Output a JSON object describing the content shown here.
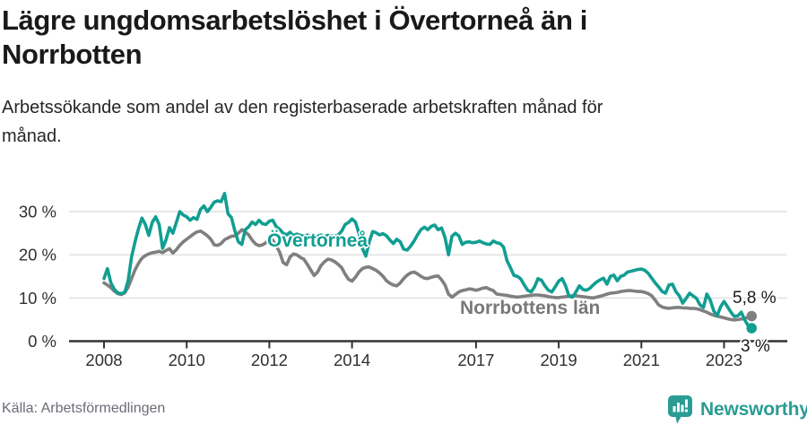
{
  "header": {
    "title_lines": [
      "Lägre ungdomsarbetslöshet i Övertorneå än i",
      "Norrbotten"
    ],
    "subtitle_lines": [
      "Arbetssökande som andel av den registerbaserade arbetskraften månad för",
      "månad."
    ]
  },
  "footer": {
    "source": "Källa: Arbetsförmedlingen",
    "brand": "Newsworthy"
  },
  "colors": {
    "overtornea": "#119e92",
    "norrbotten": "#7f7f7f",
    "grid": "#d9d9d9",
    "axis": "#333333",
    "tick_text": "#303030",
    "brand_teal": "#2a9c94"
  },
  "chart_data": {
    "type": "line",
    "title": "Lägre ungdomsarbetslöshet i Övertorneå än i Norrbotten",
    "subtitle": "Arbetssökande som andel av den registerbaserade arbetskraften månad för månad.",
    "xlabel": "",
    "ylabel": "",
    "x_start_year": 2008,
    "x_step_months": 1,
    "x_ticks": [
      2008,
      2010,
      2012,
      2014,
      2017,
      2019,
      2021,
      2023
    ],
    "y_ticks": [
      0,
      10,
      20,
      30
    ],
    "y_tick_suffix": " %",
    "ylim": [
      0,
      35.5
    ],
    "grid": "horizontal",
    "legend_position": "inline-labels",
    "series": [
      {
        "name": "Övertorneå",
        "color": "#119e92",
        "end_label": "3 %",
        "values": [
          14.5,
          16.8,
          13.5,
          12.0,
          11.2,
          11.0,
          11.3,
          14.0,
          19.5,
          23.0,
          26.0,
          28.5,
          27.0,
          24.5,
          27.5,
          28.8,
          27.0,
          21.5,
          23.5,
          26.3,
          25.0,
          27.5,
          30.0,
          29.2,
          28.8,
          28.0,
          28.6,
          28.2,
          30.5,
          31.3,
          30.0,
          31.0,
          32.2,
          32.5,
          32.3,
          34.2,
          29.5,
          28.6,
          25.5,
          23.0,
          22.4,
          25.8,
          26.5,
          27.6,
          27.0,
          28.0,
          27.2,
          27.0,
          27.8,
          28.0,
          26.5,
          25.9,
          25.0,
          24.6,
          25.2,
          24.4,
          24.8,
          24.5,
          24.3,
          24.6,
          24.2,
          23.8,
          24.3,
          24.6,
          24.2,
          24.5,
          24.4,
          24.2,
          24.6,
          25.5,
          27.0,
          27.5,
          28.3,
          27.6,
          25.0,
          21.5,
          19.7,
          23.0,
          25.4,
          25.1,
          24.6,
          24.9,
          24.4,
          23.4,
          22.6,
          23.6,
          23.0,
          21.3,
          21.1,
          22.0,
          23.2,
          24.6,
          25.8,
          26.4,
          25.8,
          26.6,
          26.9,
          25.8,
          26.2,
          24.0,
          20.0,
          24.3,
          25.0,
          24.4,
          22.4,
          22.9,
          23.0,
          22.8,
          22.9,
          23.2,
          22.8,
          22.5,
          22.4,
          23.2,
          22.8,
          22.6,
          21.8,
          18.6,
          17.0,
          15.2,
          15.0,
          14.4,
          13.0,
          11.8,
          11.4,
          12.6,
          14.5,
          14.1,
          12.8,
          11.8,
          11.4,
          12.6,
          13.9,
          14.5,
          12.8,
          10.4,
          10.2,
          11.4,
          12.8,
          12.0,
          11.8,
          12.2,
          13.0,
          13.7,
          14.2,
          14.6,
          13.2,
          15.0,
          15.3,
          14.0,
          15.0,
          15.3,
          16.0,
          16.2,
          16.4,
          16.6,
          16.7,
          16.4,
          15.7,
          14.6,
          13.5,
          12.6,
          11.5,
          11.1,
          13.0,
          13.2,
          11.5,
          10.5,
          8.8,
          9.9,
          11.1,
          10.5,
          9.9,
          8.4,
          7.8,
          10.9,
          9.5,
          7.0,
          5.9,
          8.0,
          9.2,
          8.0,
          6.7,
          5.7,
          5.9,
          6.7,
          4.9,
          3.6,
          3.0
        ]
      },
      {
        "name": "Norrbottens län",
        "color": "#7f7f7f",
        "end_label": "5,8 %",
        "values": [
          13.5,
          13.0,
          12.4,
          11.6,
          11.0,
          10.8,
          11.2,
          12.5,
          14.5,
          16.5,
          18.0,
          19.2,
          19.8,
          20.2,
          20.5,
          20.6,
          20.8,
          20.5,
          21.0,
          21.4,
          20.4,
          21.2,
          22.2,
          23.0,
          23.6,
          24.2,
          24.8,
          25.3,
          25.5,
          25.0,
          24.4,
          23.6,
          22.3,
          22.2,
          22.6,
          23.5,
          23.9,
          24.3,
          24.4,
          25.0,
          25.8,
          25.3,
          24.6,
          23.4,
          22.5,
          22.1,
          22.3,
          22.8,
          23.8,
          23.4,
          22.0,
          20.6,
          18.2,
          17.7,
          19.5,
          20.2,
          20.0,
          19.4,
          19.0,
          17.8,
          16.5,
          15.2,
          16.0,
          17.5,
          18.4,
          19.0,
          18.8,
          18.4,
          17.8,
          17.0,
          15.5,
          14.3,
          13.9,
          14.8,
          16.0,
          16.8,
          17.1,
          17.2,
          16.8,
          16.4,
          15.8,
          15.0,
          14.0,
          13.4,
          13.0,
          12.8,
          13.5,
          14.5,
          15.3,
          15.8,
          16.0,
          15.6,
          15.0,
          14.6,
          14.5,
          14.8,
          15.0,
          15.1,
          14.2,
          13.0,
          10.9,
          10.2,
          10.8,
          11.4,
          11.7,
          11.9,
          12.1,
          12.0,
          11.8,
          12.0,
          12.3,
          12.4,
          12.0,
          11.7,
          10.9,
          10.8,
          10.7,
          10.6,
          10.4,
          10.3,
          10.2,
          10.3,
          10.4,
          10.5,
          10.6,
          10.7,
          10.7,
          10.6,
          10.5,
          10.3,
          10.2,
          10.1,
          10.1,
          10.2,
          10.3,
          10.4,
          10.5,
          10.5,
          10.4,
          10.3,
          10.2,
          10.1,
          10.0,
          10.2,
          10.4,
          10.6,
          10.9,
          11.1,
          11.2,
          11.3,
          11.5,
          11.6,
          11.7,
          11.7,
          11.6,
          11.5,
          11.5,
          11.3,
          11.0,
          10.5,
          9.5,
          8.4,
          7.9,
          7.7,
          7.6,
          7.7,
          7.8,
          7.8,
          7.7,
          7.7,
          7.6,
          7.6,
          7.5,
          7.3,
          7.0,
          6.7,
          6.3,
          6.0,
          5.8,
          5.6,
          5.4,
          5.2,
          5.0,
          4.9,
          5.0,
          5.1,
          5.3,
          5.5,
          5.8
        ]
      }
    ]
  }
}
